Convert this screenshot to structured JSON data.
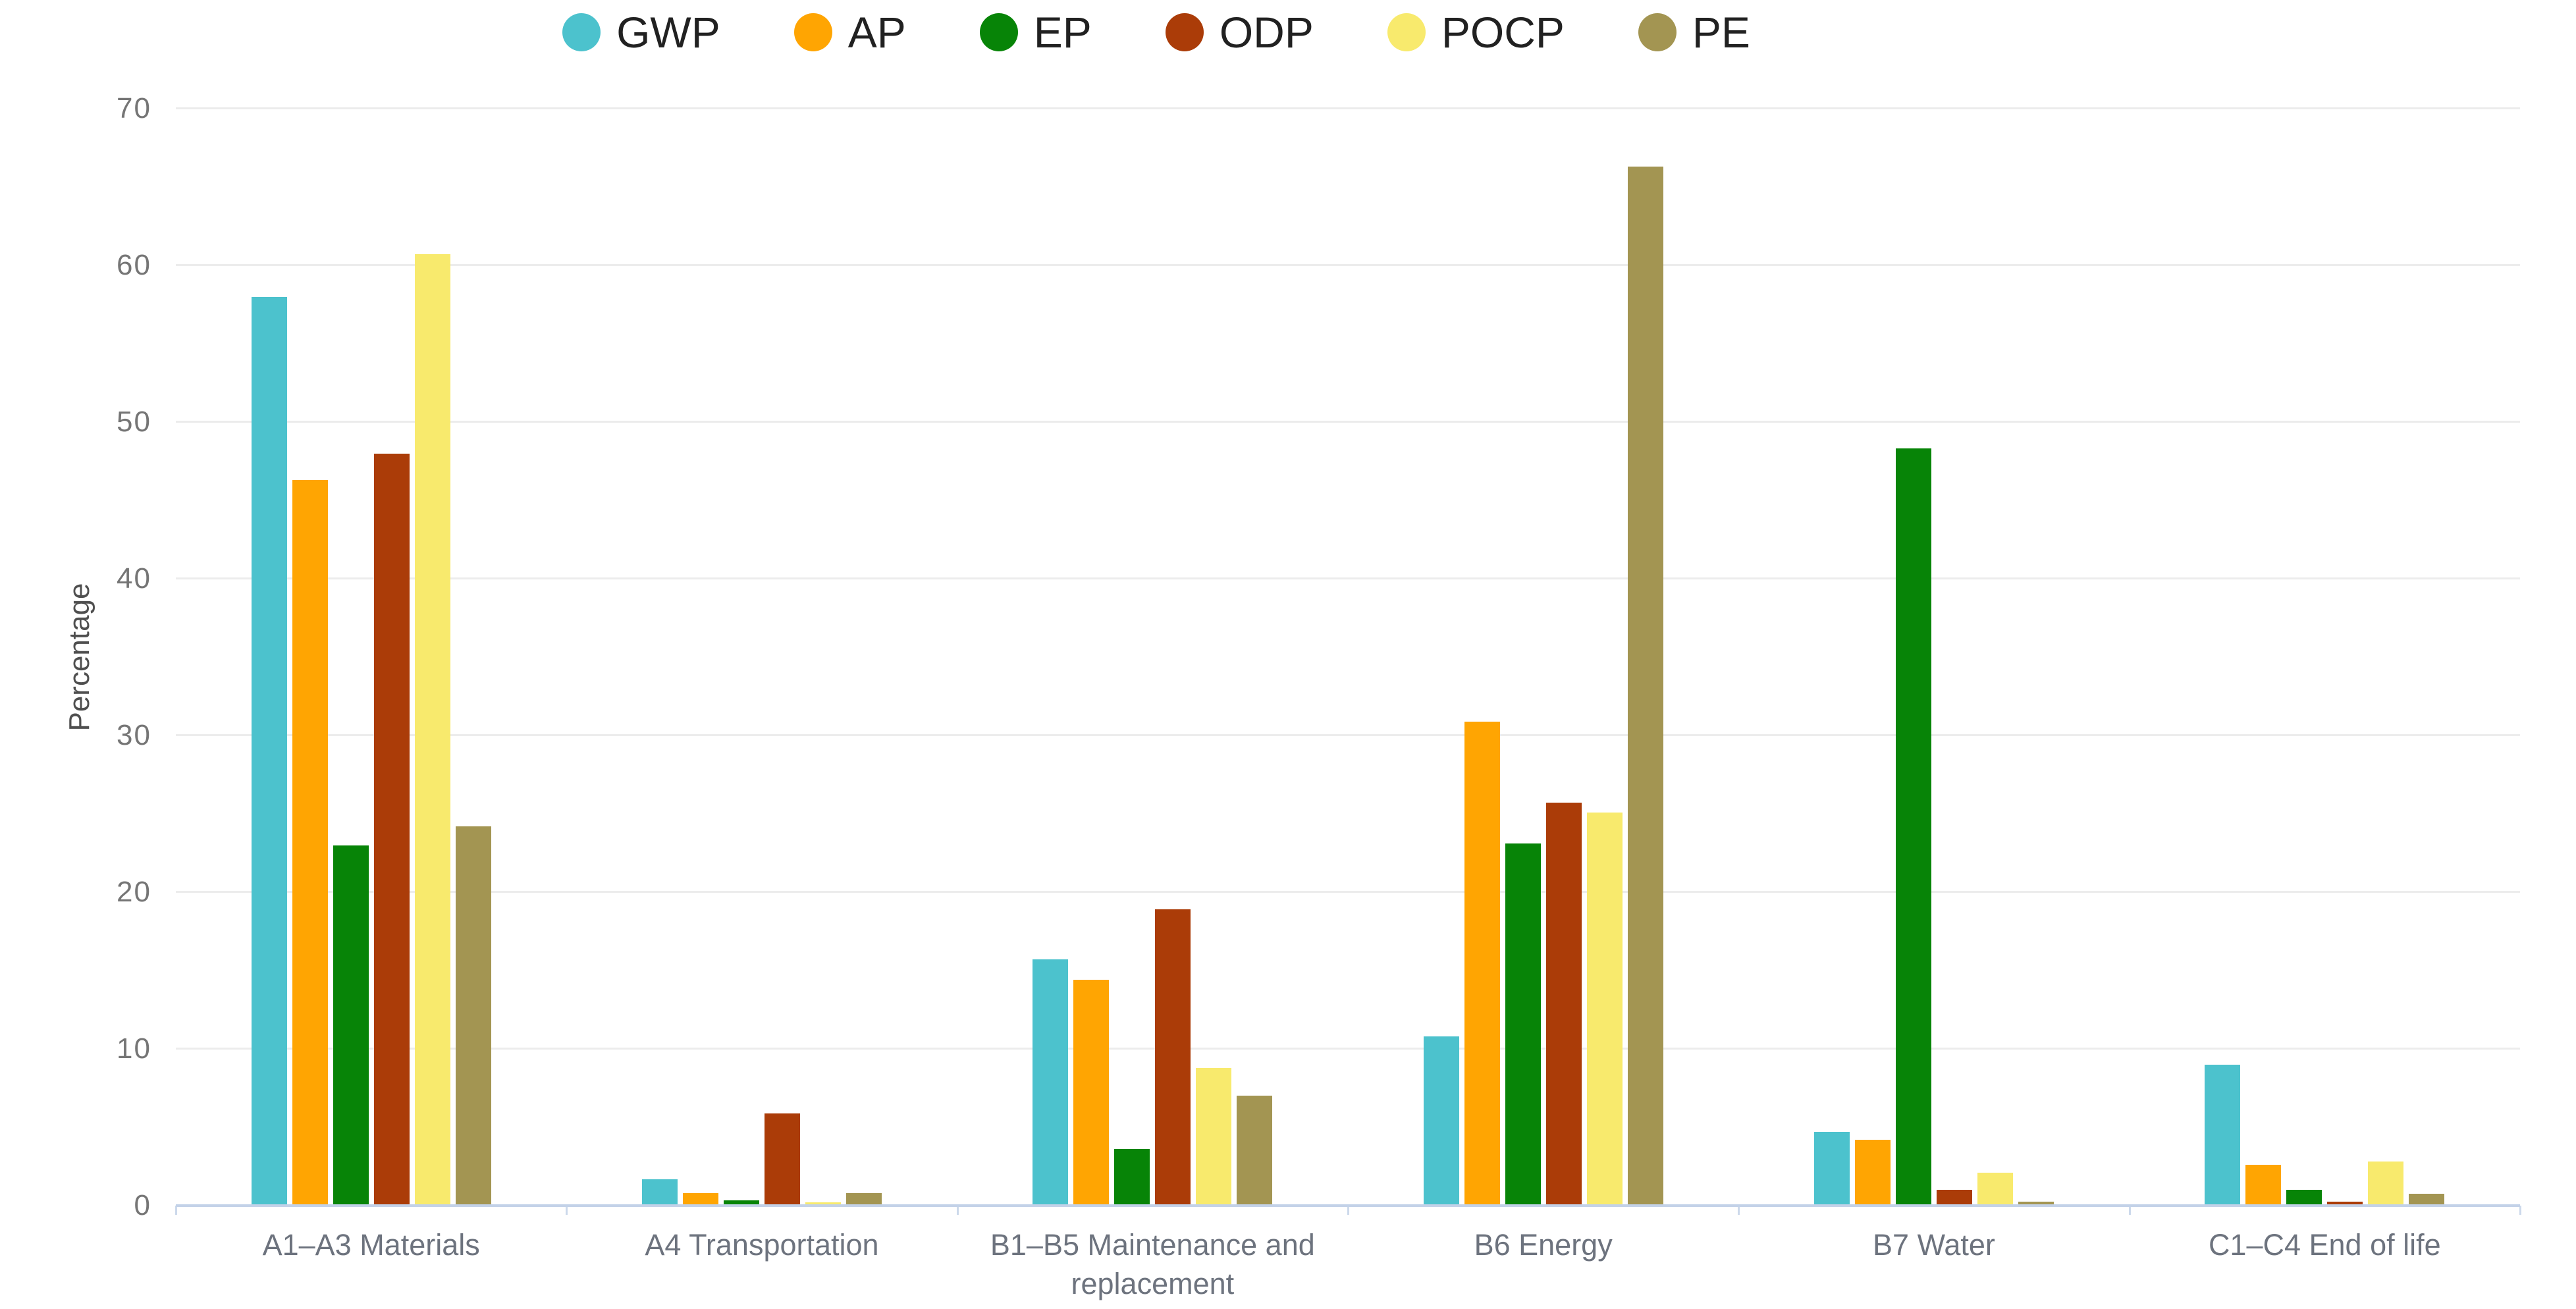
{
  "chart_data": {
    "type": "bar",
    "title": "",
    "ylabel": "Percentage",
    "categories": [
      "A1–A3 Materials",
      "A4 Transportation",
      "B1–B5 Maintenance and replacement",
      "B6 Energy",
      "B7 Water",
      "C1–C4 End of life"
    ],
    "series": [
      {
        "name": "GWP",
        "color": "#4cc2cd",
        "values": [
          58.0,
          1.7,
          15.7,
          10.8,
          4.7,
          9.0
        ]
      },
      {
        "name": "AP",
        "color": "#ffa502",
        "values": [
          46.3,
          0.8,
          14.4,
          30.9,
          4.2,
          2.6
        ]
      },
      {
        "name": "EP",
        "color": "#078407",
        "values": [
          23.0,
          0.35,
          3.6,
          23.1,
          48.3,
          1.0
        ]
      },
      {
        "name": "ODP",
        "color": "#ab3c08",
        "values": [
          48.0,
          5.9,
          18.9,
          25.7,
          1.0,
          0.25
        ]
      },
      {
        "name": "POCP",
        "color": "#f8ea6d",
        "values": [
          60.7,
          0.2,
          8.8,
          25.1,
          2.1,
          2.8
        ]
      },
      {
        "name": "PE",
        "color": "#a39552",
        "values": [
          24.2,
          0.8,
          7.0,
          66.3,
          0.25,
          0.75
        ]
      }
    ],
    "ylim": [
      0,
      70
    ],
    "ytick_step": 10,
    "yticks": [
      "0",
      "10",
      "20",
      "30",
      "40",
      "50",
      "60",
      "70"
    ],
    "grid": true,
    "legend_position": "top-center"
  },
  "colors": {
    "background": "#ffffff",
    "gridline": "#ececec",
    "axis_line": "#c3d2e8",
    "tick_text": "#757575",
    "category_text": "#6d737e",
    "legend_text": "#212121",
    "y_title_text": "#4f4f4f"
  }
}
